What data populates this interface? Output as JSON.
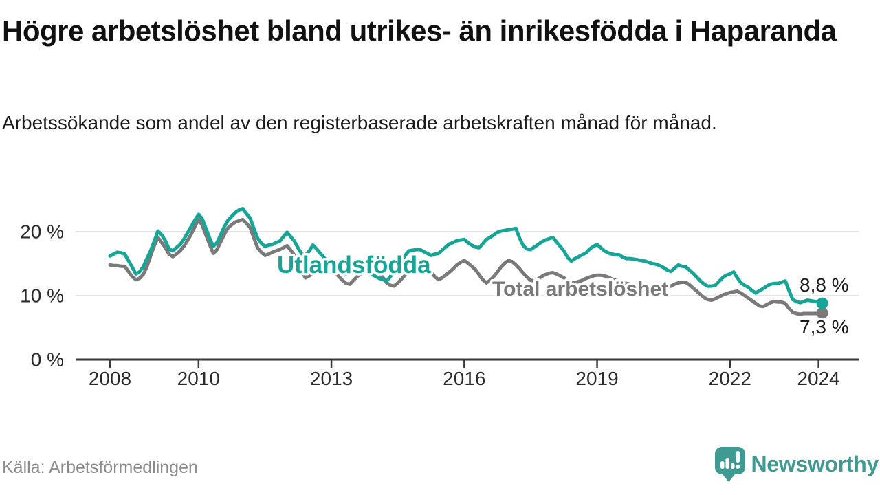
{
  "header": {
    "title": "Högre arbetslöshet bland utrikes- än inrikesfödda i Haparanda",
    "subtitle": "Arbetssökande som andel av den registerbaserade arbetskraften månad för månad."
  },
  "footer": {
    "source": "Källa: Arbetsförmedlingen",
    "brand_name": "Newsworthy"
  },
  "colors": {
    "series_foreign": "#16a596",
    "series_total": "#7a7a7a",
    "axis": "#3a3a3a",
    "grid": "#e2e2e2",
    "tick_text": "#2b2b2b",
    "value_text": "#1a1a1a",
    "muted_text": "#8c8c8c",
    "brand_teal": "#3f9a92",
    "background": "#ffffff"
  },
  "chart_data": {
    "type": "line",
    "unit": "%",
    "frequency": "monthly",
    "x_start": "2008-01",
    "x_end": "2024-02",
    "ylim": [
      0,
      25
    ],
    "grid": "horizontal",
    "legend_position": "inline-labels",
    "y_ticks": [
      {
        "value": 0,
        "label": "0 %"
      },
      {
        "value": 10,
        "label": "10 %"
      },
      {
        "value": 20,
        "label": "20 %"
      }
    ],
    "x_ticks": [
      {
        "year": 2008,
        "label": "2008"
      },
      {
        "year": 2010,
        "label": "2010"
      },
      {
        "year": 2013,
        "label": "2013"
      },
      {
        "year": 2016,
        "label": "2016"
      },
      {
        "year": 2019,
        "label": "2019"
      },
      {
        "year": 2022,
        "label": "2022"
      },
      {
        "year": 2024,
        "label": "2024"
      }
    ],
    "series": [
      {
        "name": "Total arbetslöshet",
        "color": "#7a7a7a",
        "end_label": "7,3 %",
        "end_value": 7.3,
        "values": [
          14.8,
          14.7,
          14.7,
          14.6,
          14.6,
          13.8,
          13.0,
          12.5,
          12.7,
          13.3,
          14.5,
          16.2,
          17.8,
          19.1,
          18.3,
          17.5,
          16.5,
          16.1,
          16.5,
          17.0,
          17.7,
          18.6,
          19.6,
          20.8,
          21.9,
          21.0,
          19.5,
          18.0,
          16.6,
          17.2,
          18.4,
          19.6,
          20.6,
          21.1,
          21.5,
          21.7,
          21.9,
          21.3,
          20.6,
          19.0,
          17.5,
          16.8,
          16.3,
          16.5,
          16.8,
          17.0,
          17.2,
          17.5,
          17.8,
          17.1,
          16.3,
          15.0,
          13.7,
          12.8,
          13.1,
          13.5,
          13.8,
          14.0,
          14.1,
          14.1,
          14.1,
          13.6,
          13.0,
          12.4,
          11.9,
          11.8,
          12.4,
          13.0,
          13.4,
          13.8,
          14.0,
          14.2,
          14.0,
          13.5,
          12.8,
          12.0,
          11.6,
          11.5,
          12.0,
          12.6,
          13.2,
          13.8,
          14.4,
          14.9,
          15.2,
          14.8,
          14.2,
          13.7,
          13.0,
          12.5,
          12.8,
          13.2,
          13.7,
          14.2,
          14.8,
          15.2,
          15.5,
          15.1,
          14.6,
          14.1,
          13.3,
          12.5,
          12.0,
          12.4,
          13.0,
          13.7,
          14.5,
          15.1,
          15.5,
          15.3,
          14.8,
          14.2,
          13.5,
          12.9,
          12.4,
          12.3,
          12.6,
          13.0,
          13.3,
          13.5,
          13.6,
          13.4,
          13.1,
          12.8,
          12.4,
          12.1,
          12.0,
          12.2,
          12.4,
          12.7,
          12.9,
          13.1,
          13.2,
          13.2,
          13.1,
          12.9,
          12.6,
          12.4,
          12.2,
          12.0,
          11.9,
          11.8,
          11.7,
          11.6,
          11.5,
          11.4,
          11.3,
          11.3,
          11.2,
          11.2,
          11.3,
          11.4,
          11.5,
          11.8,
          12.0,
          12.1,
          12.1,
          11.7,
          11.2,
          10.7,
          10.2,
          9.7,
          9.4,
          9.3,
          9.5,
          9.8,
          10.1,
          10.3,
          10.5,
          10.6,
          10.7,
          10.4,
          10.0,
          9.6,
          9.2,
          8.8,
          8.4,
          8.3,
          8.6,
          8.9,
          9.1,
          9.0,
          9.0,
          8.8,
          8.0,
          7.4,
          7.2,
          7.1,
          7.2,
          7.2,
          7.2,
          7.2,
          7.2,
          7.3
        ]
      },
      {
        "name": "Utlandsfödda",
        "color": "#16a596",
        "end_label": "8,8 %",
        "end_value": 8.8,
        "values": [
          16.2,
          16.5,
          16.8,
          16.7,
          16.5,
          15.5,
          14.5,
          13.4,
          13.7,
          14.5,
          15.8,
          17.0,
          18.5,
          20.1,
          19.5,
          18.6,
          17.3,
          17.0,
          17.5,
          18.0,
          18.8,
          19.8,
          20.8,
          21.8,
          22.7,
          22.0,
          20.5,
          19.0,
          17.7,
          18.3,
          19.5,
          20.8,
          21.8,
          22.4,
          23.0,
          23.4,
          23.6,
          22.8,
          22.1,
          20.5,
          19.0,
          18.2,
          17.7,
          17.9,
          18.0,
          18.3,
          18.5,
          19.2,
          19.9,
          19.2,
          18.5,
          17.4,
          16.5,
          16.3,
          17.0,
          17.9,
          17.3,
          16.6,
          16.0,
          15.0,
          14.4,
          14.0,
          13.7,
          13.5,
          13.4,
          14.2,
          15.2,
          14.8,
          14.4,
          14.1,
          13.7,
          13.3,
          13.0,
          12.7,
          12.5,
          12.3,
          13.0,
          13.8,
          14.5,
          15.5,
          16.3,
          17.0,
          17.1,
          17.2,
          17.2,
          16.9,
          16.6,
          16.3,
          16.5,
          16.6,
          17.1,
          17.6,
          18.1,
          18.3,
          18.6,
          18.7,
          18.8,
          18.3,
          17.9,
          17.6,
          17.5,
          18.1,
          18.8,
          19.1,
          19.5,
          19.9,
          20.1,
          20.2,
          20.3,
          20.4,
          20.5,
          19.0,
          17.8,
          17.3,
          17.2,
          17.6,
          18.0,
          18.4,
          18.7,
          18.9,
          19.1,
          18.4,
          17.7,
          17.0,
          16.0,
          15.4,
          15.8,
          16.1,
          16.4,
          16.7,
          17.3,
          17.7,
          18.0,
          17.5,
          17.0,
          16.7,
          16.5,
          16.4,
          16.4,
          16.0,
          15.8,
          15.8,
          15.7,
          15.6,
          15.5,
          15.4,
          15.2,
          15.0,
          14.9,
          14.7,
          14.4,
          14.0,
          13.8,
          14.3,
          14.8,
          14.6,
          14.5,
          14.0,
          13.5,
          12.9,
          12.3,
          11.8,
          11.5,
          11.5,
          11.6,
          12.2,
          12.8,
          13.2,
          13.4,
          13.7,
          12.8,
          12.0,
          11.6,
          11.3,
          10.8,
          10.4,
          10.8,
          11.1,
          11.5,
          11.8,
          11.9,
          11.9,
          12.1,
          12.3,
          10.8,
          9.4,
          9.1,
          8.9,
          9.1,
          9.3,
          9.2,
          9.1,
          9.1,
          8.8
        ]
      }
    ]
  }
}
